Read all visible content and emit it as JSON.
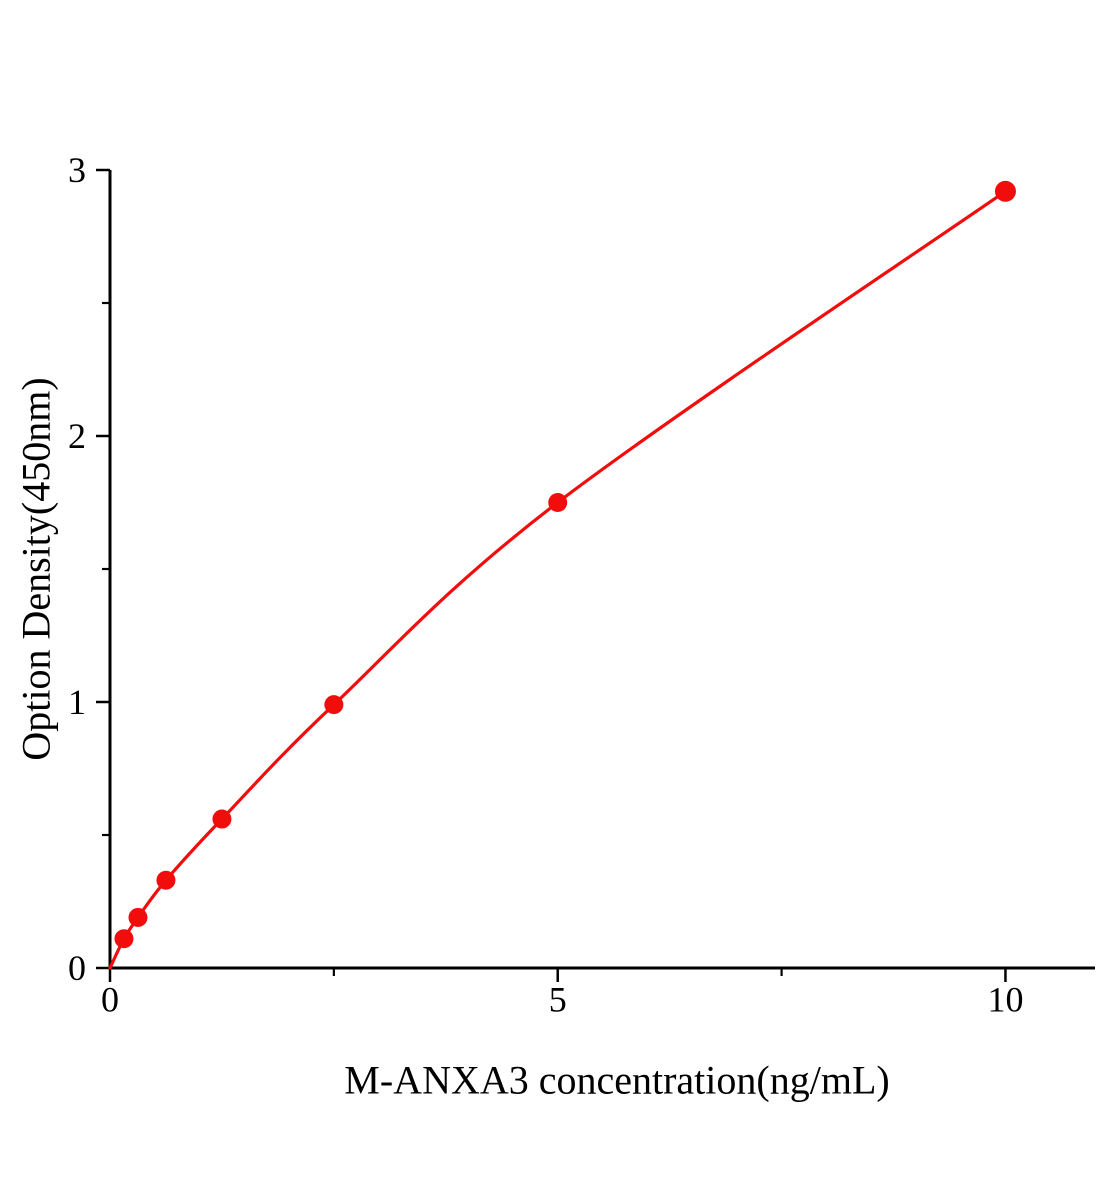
{
  "chart_data": {
    "type": "scatter",
    "subtype": "line-scatter-standard-curve",
    "title": "",
    "xlabel": "M-ANXA3 concentration(ng/mL)",
    "ylabel": "Option Density(450nm)",
    "x": [
      0.156,
      0.3125,
      0.625,
      1.25,
      2.5,
      5,
      10
    ],
    "y": [
      0.11,
      0.19,
      0.33,
      0.56,
      0.99,
      1.75,
      2.92
    ],
    "curve_includes_origin": true,
    "xlim": [
      0,
      11
    ],
    "ylim": [
      0,
      3
    ],
    "x_major_ticks": [
      0,
      5,
      10
    ],
    "x_tick_labels": [
      "0",
      "5",
      "10"
    ],
    "x_minor_ticks": [
      2.5,
      7.5
    ],
    "y_major_ticks": [
      0,
      1,
      2,
      3
    ],
    "y_tick_labels": [
      "0",
      "1",
      "2",
      "3"
    ],
    "y_minor_ticks": [
      0.5,
      1.5,
      2.5
    ],
    "grid": false,
    "legend": null,
    "line_color": "#f20d0d",
    "marker_color": "#f20d0d",
    "axis_color": "#000000",
    "background_color": "#ffffff"
  }
}
